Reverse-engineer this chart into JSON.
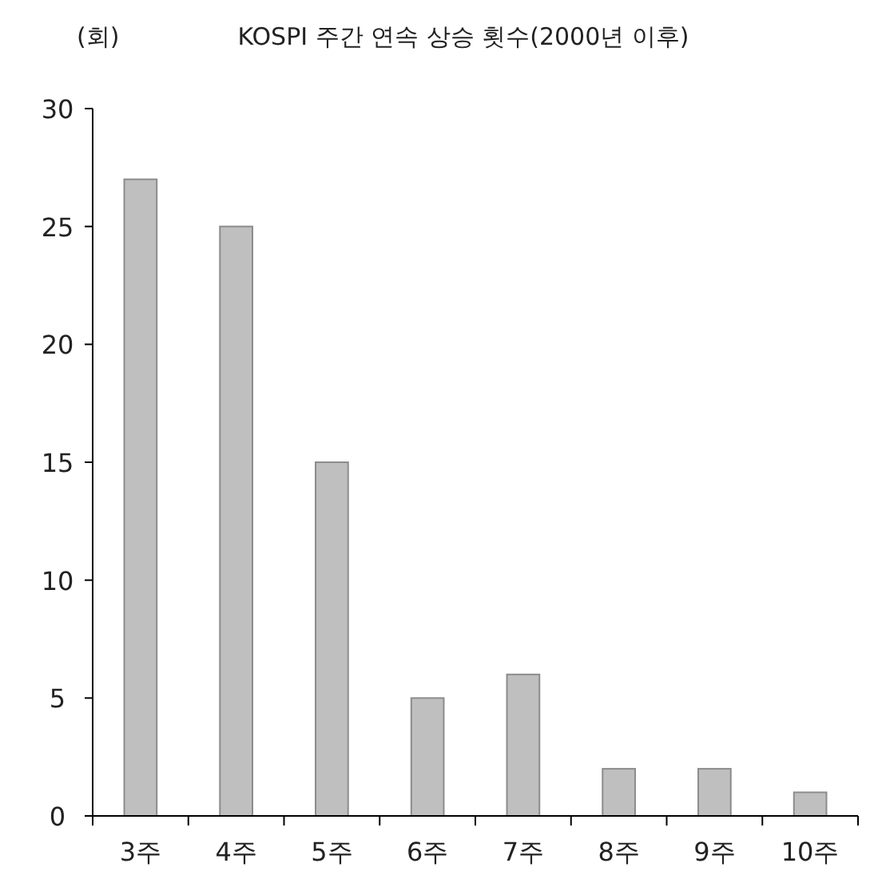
{
  "chart_data": {
    "type": "bar",
    "title": "KOSPI 주간 연속 상승 횟수(2000년 이후)",
    "ylabel": "(회)",
    "categories": [
      "3주",
      "4주",
      "5주",
      "6주",
      "7주",
      "8주",
      "9주",
      "10주"
    ],
    "values": [
      27,
      25,
      15,
      5,
      6,
      2,
      2,
      1
    ],
    "color": "#bfbfbf",
    "ylim": [
      0,
      30
    ],
    "yticks": [
      0,
      5,
      10,
      15,
      20,
      25,
      30
    ]
  }
}
